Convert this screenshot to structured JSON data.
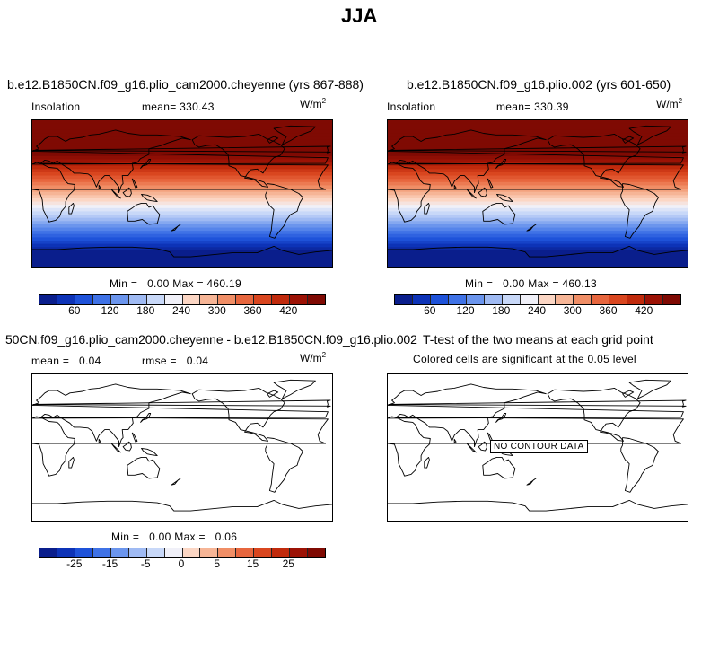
{
  "suptitle": "JJA",
  "panels": {
    "p1": {
      "title": "b.e12.B1850CN.f09_g16.plio_cam2000.cheyenne (yrs 867-888)",
      "variable": "Insolation",
      "mean_text": "mean= 330.43",
      "units_base": "W/m",
      "units_exp": "2",
      "minmax_text": "Min =   0.00 Max = 460.19",
      "field": "insolation"
    },
    "p2": {
      "title": "b.e12.B1850CN.f09_g16.plio.002 (yrs 601-650)",
      "variable": "Insolation",
      "mean_text": "mean= 330.39",
      "units_base": "W/m",
      "units_exp": "2",
      "minmax_text": "Min =   0.00 Max = 460.13",
      "field": "insolation"
    },
    "p3": {
      "title": "50CN.f09_g16.plio_cam2000.cheyenne - b.e12.B1850CN.f09_g16.plio.002",
      "mean_text": "mean =   0.04",
      "rmse_text": "rmse =   0.04",
      "units_base": "W/m",
      "units_exp": "2",
      "minmax_text": "Min =   0.00 Max =   0.06",
      "field": "blank"
    },
    "p4": {
      "title": "T-test of the two means at each grid point",
      "subtitle": "Colored cells are significant at the 0.05 level",
      "no_data_text": "NO CONTOUR DATA",
      "field": "blank"
    }
  },
  "colorbars": {
    "top": {
      "ticks": [
        "60",
        "120",
        "180",
        "240",
        "300",
        "360",
        "420"
      ]
    },
    "diff": {
      "ticks": [
        "-25",
        "-15",
        "-5",
        "0",
        "5",
        "15",
        "25"
      ]
    }
  },
  "colors": {
    "palette": [
      "#0a1e8c",
      "#0d33b7",
      "#1e52d9",
      "#3f72e6",
      "#6b95ed",
      "#9fbaf3",
      "#c8d8f8",
      "#f0f0f8",
      "#fbd6c4",
      "#f6b596",
      "#f08e66",
      "#e7663e",
      "#d9461f",
      "#c02a0c",
      "#9c1205",
      "#7f0a03"
    ]
  },
  "chart_data": [
    {
      "type": "heatmap",
      "title": "b.e12.B1850CN.f09_g16.plio_cam2000.cheyenne (yrs 867-888)",
      "variable": "Insolation",
      "units": "W/m^2",
      "season": "JJA",
      "mean": 330.43,
      "min": 0.0,
      "max": 460.19,
      "colorbar_ticks": [
        60,
        120,
        180,
        240,
        300,
        360,
        420
      ],
      "pattern": "zonal bands; highest in northern hemisphere mid-high latitudes, decreasing southward to 0 near the south pole"
    },
    {
      "type": "heatmap",
      "title": "b.e12.B1850CN.f09_g16.plio.002 (yrs 601-650)",
      "variable": "Insolation",
      "units": "W/m^2",
      "season": "JJA",
      "mean": 330.39,
      "min": 0.0,
      "max": 460.13,
      "colorbar_ticks": [
        60,
        120,
        180,
        240,
        300,
        360,
        420
      ]
    },
    {
      "type": "heatmap",
      "title": "50CN.f09_g16.plio_cam2000.cheyenne - b.e12.B1850CN.f09_g16.plio.002",
      "units": "W/m^2",
      "mean": 0.04,
      "rmse": 0.04,
      "min": 0.0,
      "max": 0.06,
      "colorbar_ticks": [
        -25,
        -15,
        -5,
        0,
        5,
        15,
        25
      ]
    },
    {
      "type": "heatmap",
      "title": "T-test of the two means at each grid point",
      "subtitle": "Colored cells are significant at the 0.05 level",
      "annotation": "NO CONTOUR DATA"
    }
  ]
}
